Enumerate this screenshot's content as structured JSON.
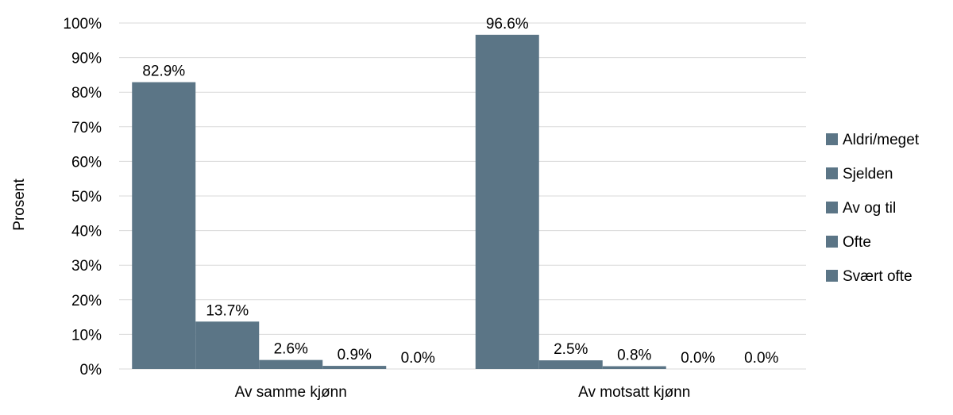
{
  "chart_data": {
    "type": "bar",
    "ylabel": "Prosent",
    "xlabel": "",
    "title": "",
    "ylim": [
      0,
      100
    ],
    "y_ticks": [
      "0%",
      "10%",
      "20%",
      "30%",
      "40%",
      "50%",
      "60%",
      "70%",
      "80%",
      "90%",
      "100%"
    ],
    "categories": [
      "Av samme kjønn",
      "Av motsatt kjønn"
    ],
    "series": [
      {
        "name": "Aldri/meget",
        "values": [
          82.9,
          96.6
        ],
        "labels": [
          "82.9%",
          "96.6%"
        ]
      },
      {
        "name": "Sjelden",
        "values": [
          13.7,
          2.5
        ],
        "labels": [
          "13.7%",
          "2.5%"
        ]
      },
      {
        "name": "Av og til",
        "values": [
          2.6,
          0.8
        ],
        "labels": [
          "2.6%",
          "0.8%"
        ]
      },
      {
        "name": "Ofte",
        "values": [
          0.9,
          0.0
        ],
        "labels": [
          "0.9%",
          "0.0%"
        ]
      },
      {
        "name": "Svært ofte",
        "values": [
          0.0,
          0.0
        ],
        "labels": [
          "0.0%",
          "0.0%"
        ]
      }
    ],
    "bar_color": "#5b7586",
    "legend_position": "right",
    "grid": true
  }
}
